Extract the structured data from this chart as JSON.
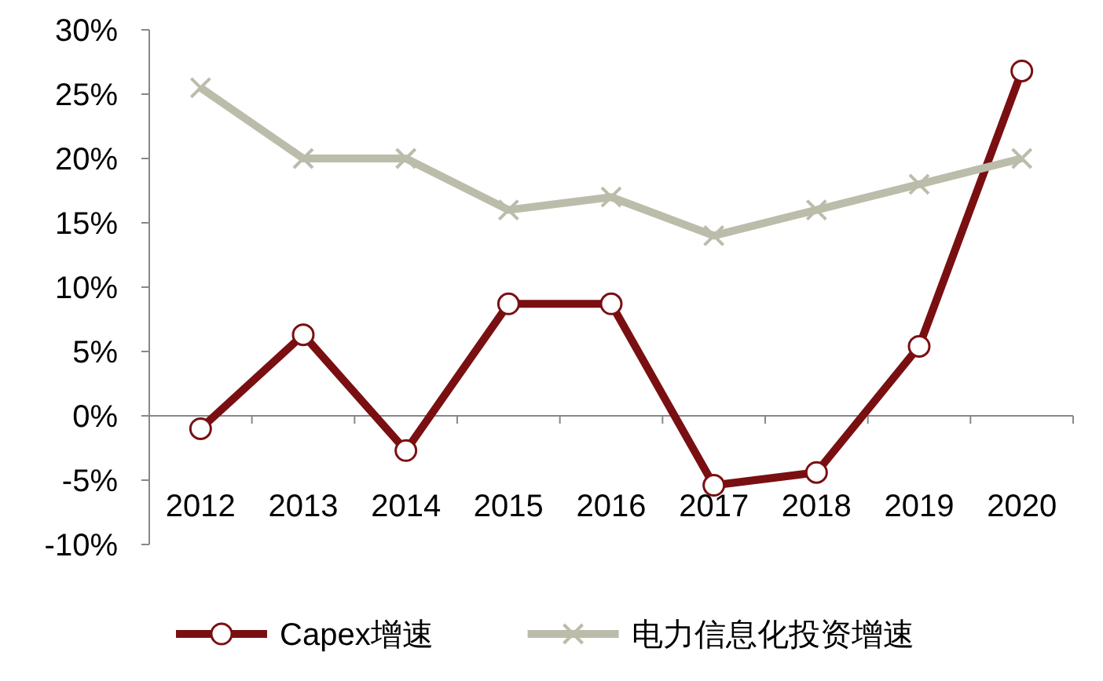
{
  "chart_data": {
    "type": "line",
    "categories": [
      "2012",
      "2013",
      "2014",
      "2015",
      "2016",
      "2017",
      "2018",
      "2019",
      "2020"
    ],
    "series": [
      {
        "name": "Capex增速",
        "color": "#7a0f12",
        "marker": "circle",
        "values": [
          -1.0,
          6.3,
          -2.7,
          8.7,
          8.7,
          -5.4,
          -4.4,
          5.4,
          26.8
        ]
      },
      {
        "name": "电力信息化投资增速",
        "color": "#bcbcab",
        "marker": "cross",
        "values": [
          25.5,
          20,
          20,
          16,
          17,
          14,
          16,
          18,
          20
        ]
      }
    ],
    "ylim": [
      -10,
      30
    ],
    "yticks": [
      {
        "value": -10,
        "label": "-10%"
      },
      {
        "value": -5,
        "label": "-5%"
      },
      {
        "value": 0,
        "label": "0%"
      },
      {
        "value": 5,
        "label": "5%"
      },
      {
        "value": 10,
        "label": "10%"
      },
      {
        "value": 15,
        "label": "15%"
      },
      {
        "value": 20,
        "label": "20%"
      },
      {
        "value": 25,
        "label": "25%"
      },
      {
        "value": 30,
        "label": "30%"
      }
    ],
    "grid": false,
    "legend": "bottom",
    "line_style": "solid"
  }
}
